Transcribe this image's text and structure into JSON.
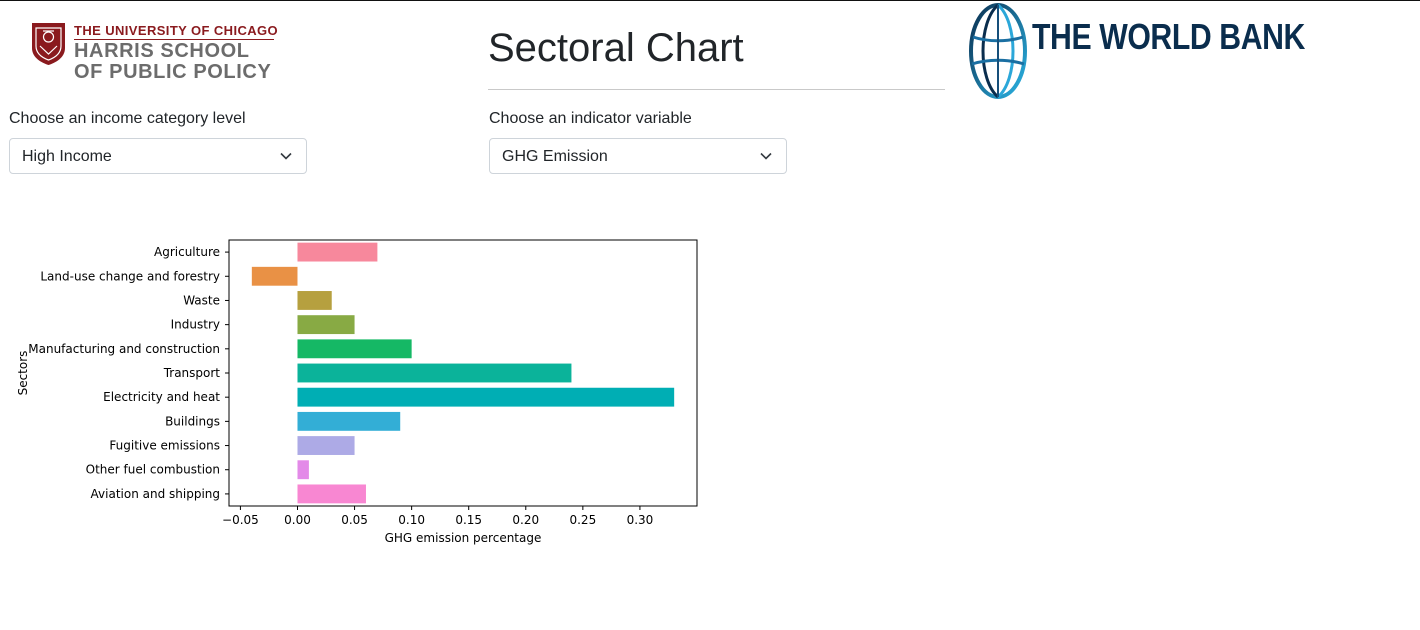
{
  "header": {
    "title": "Sectoral Chart",
    "harris_logo": {
      "line1": "THE UNIVERSITY OF CHICAGO",
      "line2": "HARRIS SCHOOL",
      "line3": "OF PUBLIC POLICY"
    },
    "worldbank_logo": {
      "text": "THE WORLD BANK"
    }
  },
  "controls": {
    "income": {
      "label": "Choose an income category level",
      "value": "High Income"
    },
    "indicator": {
      "label": "Choose an indicator variable",
      "value": "GHG Emission"
    }
  },
  "colors": {
    "uchicago_maroon": "#8a1a1e",
    "worldbank_navy": "#0a2d4d"
  },
  "chart_data": {
    "type": "bar",
    "orientation": "horizontal",
    "categories": [
      "Agriculture",
      "Land-use change and forestry",
      "Waste",
      "Industry",
      "Manufacturing and construction",
      "Transport",
      "Electricity and heat",
      "Buildings",
      "Fugitive emissions",
      "Other fuel combustion",
      "Aviation and shipping"
    ],
    "values": [
      0.07,
      -0.04,
      0.03,
      0.05,
      0.1,
      0.24,
      0.33,
      0.09,
      0.05,
      0.01,
      0.06
    ],
    "colors": [
      "#f7889c",
      "#e99145",
      "#b6a03f",
      "#88aa44",
      "#15b865",
      "#0bb39a",
      "#00aeb4",
      "#33aed6",
      "#adaae6",
      "#e38ae8",
      "#f887d2"
    ],
    "xlabel": "GHG emission percentage",
    "ylabel": "Sectors",
    "xlim": [
      -0.06,
      0.35
    ],
    "xticks": [
      -0.05,
      0.0,
      0.05,
      0.1,
      0.15,
      0.2,
      0.25,
      0.3
    ],
    "xtick_labels": [
      "−0.05",
      "0.00",
      "0.05",
      "0.10",
      "0.15",
      "0.20",
      "0.25",
      "0.30"
    ],
    "grid": false,
    "legend": "none"
  }
}
